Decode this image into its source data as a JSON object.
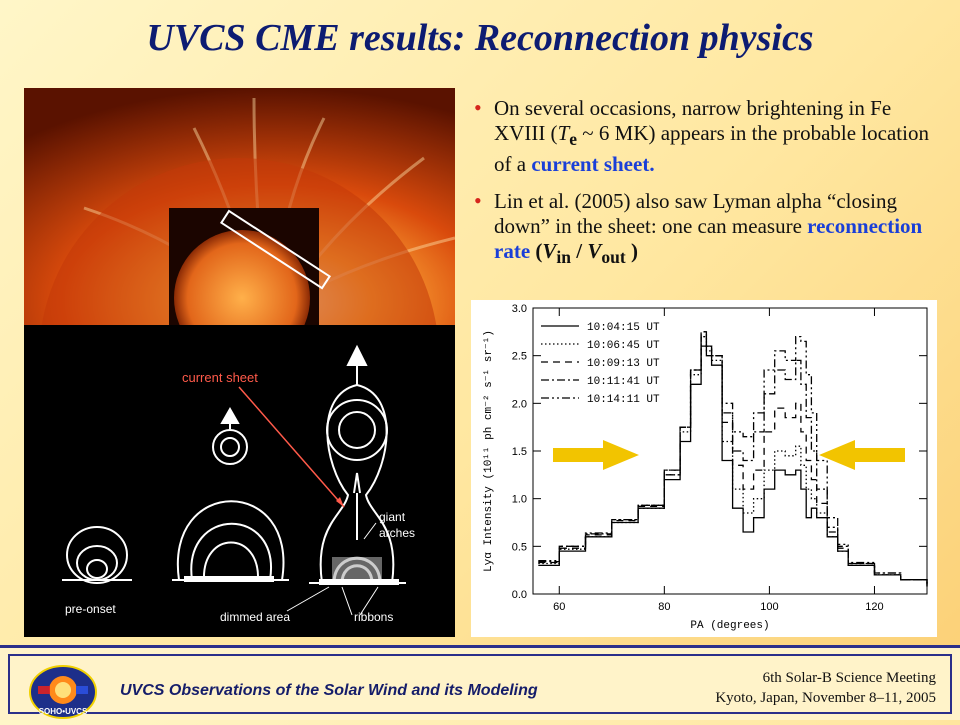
{
  "title": "UVCS CME results:  Reconnection physics",
  "bullets": [
    {
      "part1": "On several occasions, narrow brightening in Fe XVIII (",
      "te_var": "T",
      "te_sub": "e",
      "part2": " ~ 6 MK) appears in the probable location of a ",
      "highlight": "current sheet.",
      "part3": ""
    },
    {
      "part1": " Lin et al. (2005) also saw Lyman alpha “closing down” in the sheet: one can measure ",
      "highlight": "reconnection rate",
      "rate_open": " (",
      "v_var": "V",
      "v_in": "in",
      "slash": " / ",
      "v_out": "out",
      "rate_close": " )"
    }
  ],
  "diagram": {
    "labels": {
      "current_sheet": "current sheet",
      "pre_onset": "pre-onset",
      "dimmed_area": "dimmed area",
      "ribbons": "ribbons",
      "giant_arches_1": "giant",
      "giant_arches_2": "arches"
    }
  },
  "chart_data": {
    "type": "line",
    "xlabel": "PA (degrees)",
    "ylabel": "Lyα Intensity (10¹¹ ph cm⁻² s⁻¹ sr⁻¹)",
    "xlim": [
      55,
      130
    ],
    "ylim": [
      0.0,
      3.0
    ],
    "xticks": [
      "60",
      "80",
      "100",
      "120"
    ],
    "yticks": [
      "0.0",
      "0.5",
      "1.0",
      "1.5",
      "2.0",
      "2.5",
      "3.0"
    ],
    "x": [
      56,
      60,
      65,
      70,
      75,
      80,
      83,
      85,
      87,
      88,
      89,
      91,
      93,
      95,
      97,
      99,
      101,
      103,
      105,
      106,
      107,
      108,
      109,
      111,
      113,
      115,
      120,
      125,
      130
    ],
    "series": [
      {
        "name": "10:04:15 UT",
        "values": [
          0.3,
          0.45,
          0.6,
          0.75,
          0.9,
          1.2,
          1.6,
          2.2,
          2.6,
          2.5,
          2.4,
          1.4,
          0.9,
          0.65,
          0.8,
          1.1,
          1.3,
          1.25,
          1.3,
          1.1,
          0.8,
          0.9,
          0.8,
          0.6,
          0.45,
          0.3,
          0.2,
          0.15,
          0.08
        ]
      },
      {
        "name": "10:06:45 UT",
        "values": [
          0.32,
          0.47,
          0.6,
          0.75,
          0.9,
          1.25,
          1.7,
          2.3,
          2.7,
          2.55,
          2.45,
          1.6,
          1.1,
          0.85,
          1.0,
          1.3,
          1.5,
          1.45,
          1.55,
          1.35,
          1.1,
          1.0,
          0.85,
          0.6,
          0.45,
          0.3,
          0.2,
          0.15,
          0.08
        ]
      },
      {
        "name": "10:09:13 UT",
        "values": [
          0.33,
          0.48,
          0.62,
          0.77,
          0.92,
          1.25,
          1.75,
          2.35,
          2.75,
          2.6,
          2.5,
          1.8,
          1.35,
          1.1,
          1.3,
          1.7,
          1.95,
          1.85,
          2.0,
          1.7,
          1.4,
          1.2,
          0.95,
          0.65,
          0.48,
          0.32,
          0.2,
          0.15,
          0.08
        ]
      },
      {
        "name": "10:11:41 UT",
        "values": [
          0.34,
          0.5,
          0.63,
          0.78,
          0.93,
          1.3,
          1.75,
          2.35,
          2.75,
          2.6,
          2.5,
          1.9,
          1.5,
          1.4,
          1.7,
          2.1,
          2.35,
          2.25,
          2.45,
          2.2,
          1.85,
          1.5,
          1.1,
          0.7,
          0.5,
          0.32,
          0.22,
          0.15,
          0.08
        ]
      },
      {
        "name": "10:14:11 UT",
        "values": [
          0.35,
          0.5,
          0.64,
          0.78,
          0.93,
          1.3,
          1.75,
          2.35,
          2.7,
          2.6,
          2.5,
          2.0,
          1.7,
          1.65,
          1.9,
          2.35,
          2.55,
          2.45,
          2.7,
          2.65,
          2.3,
          1.9,
          1.4,
          0.8,
          0.52,
          0.33,
          0.22,
          0.15,
          0.08
        ]
      }
    ],
    "arrow_color": "#f2c400"
  },
  "footer": {
    "left": "UVCS Observations of the Solar Wind and its Modeling",
    "right_line1": "6th Solar-B Science Meeting",
    "right_line2": "Kyoto, Japan, November 8–11, 2005",
    "logo_text": "SOHO•UVCS"
  }
}
